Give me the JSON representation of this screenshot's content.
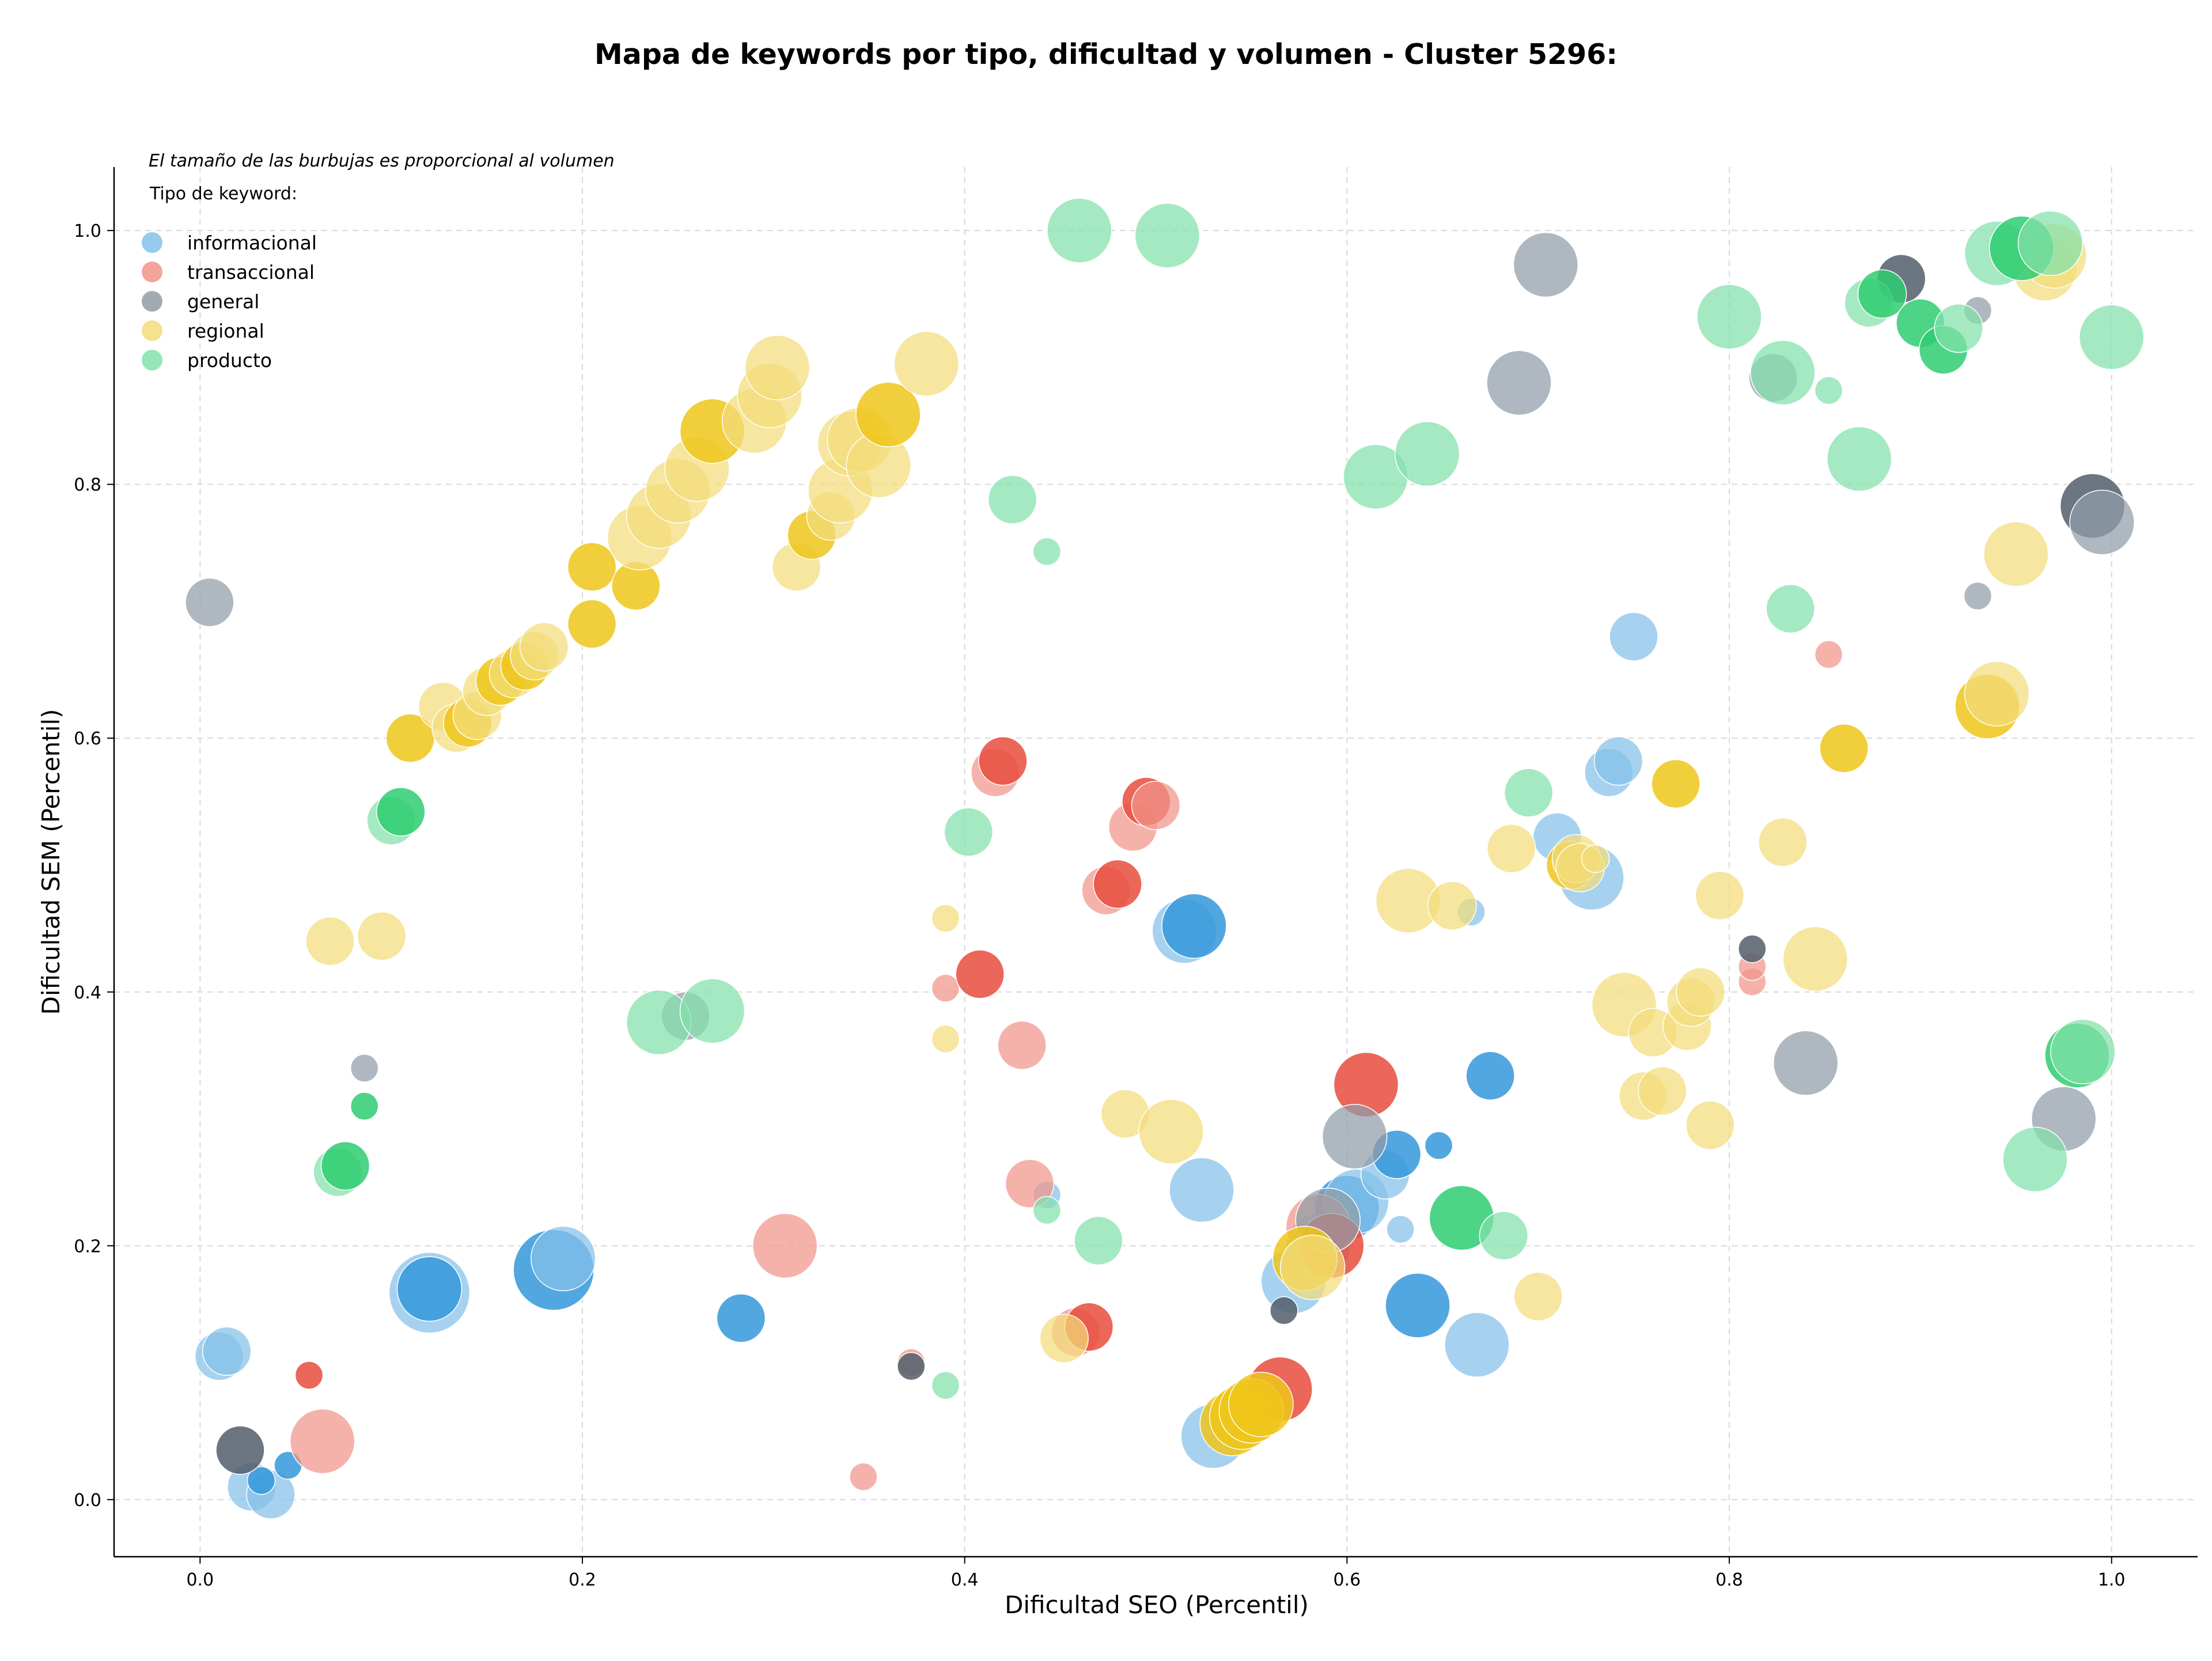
{
  "chart_data": {
    "type": "scatter",
    "title": "Mapa de keywords por tipo, dificultad y volumen - Cluster 5296:",
    "xlabel": "Dificultad SEO (Percentil)",
    "ylabel": "Dificultad SEM (Percentil)",
    "xlim": [
      -0.045,
      1.045
    ],
    "ylim": [
      -0.045,
      1.05
    ],
    "x_ticks": [
      "0.0",
      "0.2",
      "0.4",
      "0.6",
      "0.8",
      "1.0"
    ],
    "y_ticks": [
      "0.0",
      "0.2",
      "0.4",
      "0.6",
      "0.8",
      "1.0"
    ],
    "grid": true,
    "legend_placement": "top-left",
    "size_note": "El tamaño de las burbujas es proporcional al volumen",
    "legend_title": "Tipo de keyword:",
    "series": [
      {
        "name": "informacional",
        "colors": [
          "#85C1E9",
          "#3498DB"
        ],
        "points": [
          [
            0.01,
            0.113,
            2,
            0
          ],
          [
            0.014,
            0.117,
            2,
            0
          ],
          [
            0.027,
            0.01,
            2,
            0
          ],
          [
            0.037,
            0.004,
            2,
            0
          ],
          [
            0.032,
            0.015,
            1,
            1
          ],
          [
            0.046,
            0.027,
            1,
            1
          ],
          [
            0.12,
            0.163,
            4,
            0
          ],
          [
            0.12,
            0.166,
            3,
            1
          ],
          [
            0.185,
            0.181,
            4,
            1
          ],
          [
            0.19,
            0.19,
            3,
            0
          ],
          [
            0.283,
            0.143,
            2,
            1
          ],
          [
            0.515,
            0.448,
            3,
            0
          ],
          [
            0.52,
            0.452,
            3,
            1
          ],
          [
            0.524,
            0.244,
            3,
            0
          ],
          [
            0.53,
            0.05,
            3,
            0
          ],
          [
            0.572,
            0.172,
            3,
            0
          ],
          [
            0.585,
            0.2,
            3,
            0
          ],
          [
            0.6,
            0.23,
            3,
            1
          ],
          [
            0.605,
            0.235,
            3,
            0
          ],
          [
            0.62,
            0.256,
            2,
            0
          ],
          [
            0.626,
            0.272,
            2,
            1
          ],
          [
            0.628,
            0.213,
            1,
            0
          ],
          [
            0.637,
            0.153,
            3,
            1
          ],
          [
            0.648,
            0.279,
            1,
            1
          ],
          [
            0.668,
            0.122,
            3,
            0
          ],
          [
            0.665,
            0.463,
            1,
            0
          ],
          [
            0.675,
            0.334,
            2,
            1
          ],
          [
            0.71,
            0.522,
            2,
            0
          ],
          [
            0.728,
            0.49,
            3,
            0
          ],
          [
            0.737,
            0.573,
            2,
            0
          ],
          [
            0.742,
            0.582,
            2,
            0
          ],
          [
            0.75,
            0.68,
            2,
            0
          ],
          [
            0.443,
            0.24,
            1,
            0
          ]
        ]
      },
      {
        "name": "transaccional",
        "colors": [
          "#F1948A",
          "#E74C3C"
        ],
        "points": [
          [
            0.057,
            0.098,
            1,
            1
          ],
          [
            0.064,
            0.046,
            3,
            0
          ],
          [
            0.306,
            0.2,
            3,
            0
          ],
          [
            0.347,
            0.018,
            1,
            0
          ],
          [
            0.372,
            0.108,
            1,
            0
          ],
          [
            0.39,
            0.403,
            1,
            0
          ],
          [
            0.408,
            0.414,
            2,
            1
          ],
          [
            0.416,
            0.573,
            2,
            0
          ],
          [
            0.42,
            0.582,
            2,
            1
          ],
          [
            0.43,
            0.358,
            2,
            0
          ],
          [
            0.434,
            0.249,
            2,
            0
          ],
          [
            0.458,
            0.132,
            2,
            0
          ],
          [
            0.465,
            0.136,
            2,
            1
          ],
          [
            0.474,
            0.48,
            2,
            0
          ],
          [
            0.48,
            0.485,
            2,
            1
          ],
          [
            0.488,
            0.53,
            2,
            0
          ],
          [
            0.495,
            0.55,
            2,
            1
          ],
          [
            0.5,
            0.547,
            2,
            0
          ],
          [
            0.565,
            0.087,
            3,
            1
          ],
          [
            0.585,
            0.215,
            3,
            0
          ],
          [
            0.592,
            0.2,
            3,
            1
          ],
          [
            0.61,
            0.327,
            3,
            1
          ],
          [
            0.812,
            0.408,
            1,
            0
          ],
          [
            0.812,
            0.42,
            1,
            0
          ],
          [
            0.852,
            0.666,
            1,
            0
          ]
        ]
      },
      {
        "name": "general",
        "colors": [
          "#909CA7",
          "#515E6B"
        ],
        "points": [
          [
            0.005,
            0.707,
            2,
            0
          ],
          [
            0.021,
            0.039,
            2,
            1
          ],
          [
            0.086,
            0.34,
            1,
            0
          ],
          [
            0.254,
            0.381,
            2,
            0
          ],
          [
            0.372,
            0.105,
            1,
            1
          ],
          [
            0.567,
            0.149,
            1,
            1
          ],
          [
            0.59,
            0.22,
            3,
            0
          ],
          [
            0.604,
            0.286,
            3,
            0
          ],
          [
            0.69,
            0.88,
            3,
            0
          ],
          [
            0.704,
            0.973,
            3,
            0
          ],
          [
            0.812,
            0.434,
            1,
            1
          ],
          [
            0.823,
            0.884,
            2,
            0
          ],
          [
            0.84,
            0.344,
            3,
            0
          ],
          [
            0.89,
            0.962,
            2,
            1
          ],
          [
            0.93,
            0.712,
            1,
            0
          ],
          [
            0.93,
            0.937,
            1,
            0
          ],
          [
            0.975,
            0.3,
            3,
            0
          ],
          [
            0.99,
            0.783,
            3,
            1
          ],
          [
            0.995,
            0.77,
            3,
            0
          ]
        ]
      },
      {
        "name": "regional",
        "colors": [
          "#F3DC7A",
          "#EFC51A"
        ],
        "points": [
          [
            0.068,
            0.44,
            2,
            0
          ],
          [
            0.095,
            0.444,
            2,
            0
          ],
          [
            0.11,
            0.6,
            2,
            1
          ],
          [
            0.127,
            0.625,
            2,
            0
          ],
          [
            0.134,
            0.608,
            2,
            0
          ],
          [
            0.14,
            0.612,
            2,
            1
          ],
          [
            0.145,
            0.618,
            2,
            0
          ],
          [
            0.15,
            0.637,
            2,
            0
          ],
          [
            0.157,
            0.645,
            2,
            1
          ],
          [
            0.164,
            0.651,
            2,
            0
          ],
          [
            0.17,
            0.657,
            2,
            1
          ],
          [
            0.175,
            0.665,
            2,
            0
          ],
          [
            0.18,
            0.672,
            2,
            0
          ],
          [
            0.205,
            0.735,
            2,
            1
          ],
          [
            0.205,
            0.69,
            2,
            1
          ],
          [
            0.228,
            0.72,
            2,
            1
          ],
          [
            0.23,
            0.758,
            3,
            0
          ],
          [
            0.24,
            0.775,
            3,
            0
          ],
          [
            0.25,
            0.795,
            3,
            0
          ],
          [
            0.26,
            0.812,
            3,
            0
          ],
          [
            0.268,
            0.842,
            3,
            1
          ],
          [
            0.29,
            0.85,
            3,
            0
          ],
          [
            0.298,
            0.87,
            3,
            0
          ],
          [
            0.302,
            0.892,
            3,
            0
          ],
          [
            0.312,
            0.735,
            2,
            0
          ],
          [
            0.32,
            0.76,
            2,
            1
          ],
          [
            0.33,
            0.775,
            2,
            0
          ],
          [
            0.335,
            0.795,
            3,
            0
          ],
          [
            0.34,
            0.832,
            3,
            0
          ],
          [
            0.345,
            0.835,
            3,
            0
          ],
          [
            0.355,
            0.815,
            3,
            0
          ],
          [
            0.36,
            0.855,
            3,
            1
          ],
          [
            0.38,
            0.895,
            3,
            0
          ],
          [
            0.39,
            0.458,
            1,
            0
          ],
          [
            0.39,
            0.363,
            1,
            0
          ],
          [
            0.452,
            0.127,
            2,
            0
          ],
          [
            0.484,
            0.304,
            2,
            0
          ],
          [
            0.508,
            0.29,
            3,
            0
          ],
          [
            0.54,
            0.06,
            3,
            1
          ],
          [
            0.545,
            0.065,
            3,
            1
          ],
          [
            0.55,
            0.07,
            3,
            1
          ],
          [
            0.555,
            0.075,
            3,
            1
          ],
          [
            0.578,
            0.19,
            3,
            1
          ],
          [
            0.582,
            0.183,
            3,
            0
          ],
          [
            0.632,
            0.472,
            3,
            0
          ],
          [
            0.655,
            0.468,
            2,
            0
          ],
          [
            0.686,
            0.513,
            2,
            0
          ],
          [
            0.7,
            0.16,
            2,
            0
          ],
          [
            0.717,
            0.5,
            2,
            1
          ],
          [
            0.72,
            0.505,
            2,
            0
          ],
          [
            0.722,
            0.498,
            2,
            0
          ],
          [
            0.73,
            0.505,
            1,
            0
          ],
          [
            0.745,
            0.39,
            3,
            0
          ],
          [
            0.755,
            0.318,
            2,
            0
          ],
          [
            0.76,
            0.368,
            2,
            0
          ],
          [
            0.765,
            0.322,
            2,
            0
          ],
          [
            0.772,
            0.564,
            2,
            1
          ],
          [
            0.778,
            0.373,
            2,
            0
          ],
          [
            0.78,
            0.392,
            2,
            0
          ],
          [
            0.785,
            0.4,
            2,
            0
          ],
          [
            0.79,
            0.295,
            2,
            0
          ],
          [
            0.795,
            0.476,
            2,
            0
          ],
          [
            0.828,
            0.518,
            2,
            0
          ],
          [
            0.86,
            0.592,
            2,
            1
          ],
          [
            0.845,
            0.426,
            3,
            0
          ],
          [
            0.935,
            0.625,
            3,
            1
          ],
          [
            0.94,
            0.635,
            3,
            0
          ],
          [
            0.95,
            0.745,
            3,
            0
          ],
          [
            0.965,
            0.97,
            3,
            0
          ],
          [
            0.97,
            0.98,
            3,
            0
          ]
        ]
      },
      {
        "name": "producto",
        "colors": [
          "#82E0AA",
          "#2ECC71"
        ],
        "points": [
          [
            0.072,
            0.258,
            2,
            0
          ],
          [
            0.076,
            0.263,
            2,
            1
          ],
          [
            0.086,
            0.31,
            1,
            1
          ],
          [
            0.1,
            0.535,
            2,
            0
          ],
          [
            0.105,
            0.542,
            2,
            1
          ],
          [
            0.24,
            0.376,
            3,
            0
          ],
          [
            0.268,
            0.385,
            3,
            0
          ],
          [
            0.39,
            0.09,
            1,
            0
          ],
          [
            0.402,
            0.526,
            2,
            0
          ],
          [
            0.425,
            0.788,
            2,
            0
          ],
          [
            0.443,
            0.228,
            1,
            0
          ],
          [
            0.443,
            0.747,
            1,
            0
          ],
          [
            0.46,
            1.0,
            3,
            0
          ],
          [
            0.47,
            0.204,
            2,
            0
          ],
          [
            0.506,
            0.996,
            3,
            0
          ],
          [
            0.615,
            0.806,
            3,
            0
          ],
          [
            0.642,
            0.824,
            3,
            0
          ],
          [
            0.66,
            0.222,
            3,
            1
          ],
          [
            0.682,
            0.208,
            2,
            0
          ],
          [
            0.695,
            0.557,
            2,
            0
          ],
          [
            0.8,
            0.932,
            3,
            0
          ],
          [
            0.828,
            0.888,
            3,
            0
          ],
          [
            0.832,
            0.702,
            2,
            0
          ],
          [
            0.852,
            0.874,
            1,
            0
          ],
          [
            0.868,
            0.82,
            3,
            0
          ],
          [
            0.873,
            0.943,
            2,
            0
          ],
          [
            0.88,
            0.95,
            2,
            1
          ],
          [
            0.9,
            0.927,
            2,
            1
          ],
          [
            0.912,
            0.906,
            2,
            1
          ],
          [
            0.92,
            0.923,
            2,
            0
          ],
          [
            0.94,
            0.982,
            3,
            0
          ],
          [
            0.953,
            0.986,
            3,
            1
          ],
          [
            0.96,
            0.268,
            3,
            0
          ],
          [
            0.968,
            0.99,
            3,
            0
          ],
          [
            0.982,
            0.35,
            3,
            1
          ],
          [
            0.985,
            0.353,
            3,
            0
          ],
          [
            1.0,
            0.916,
            3,
            0
          ]
        ]
      }
    ]
  }
}
